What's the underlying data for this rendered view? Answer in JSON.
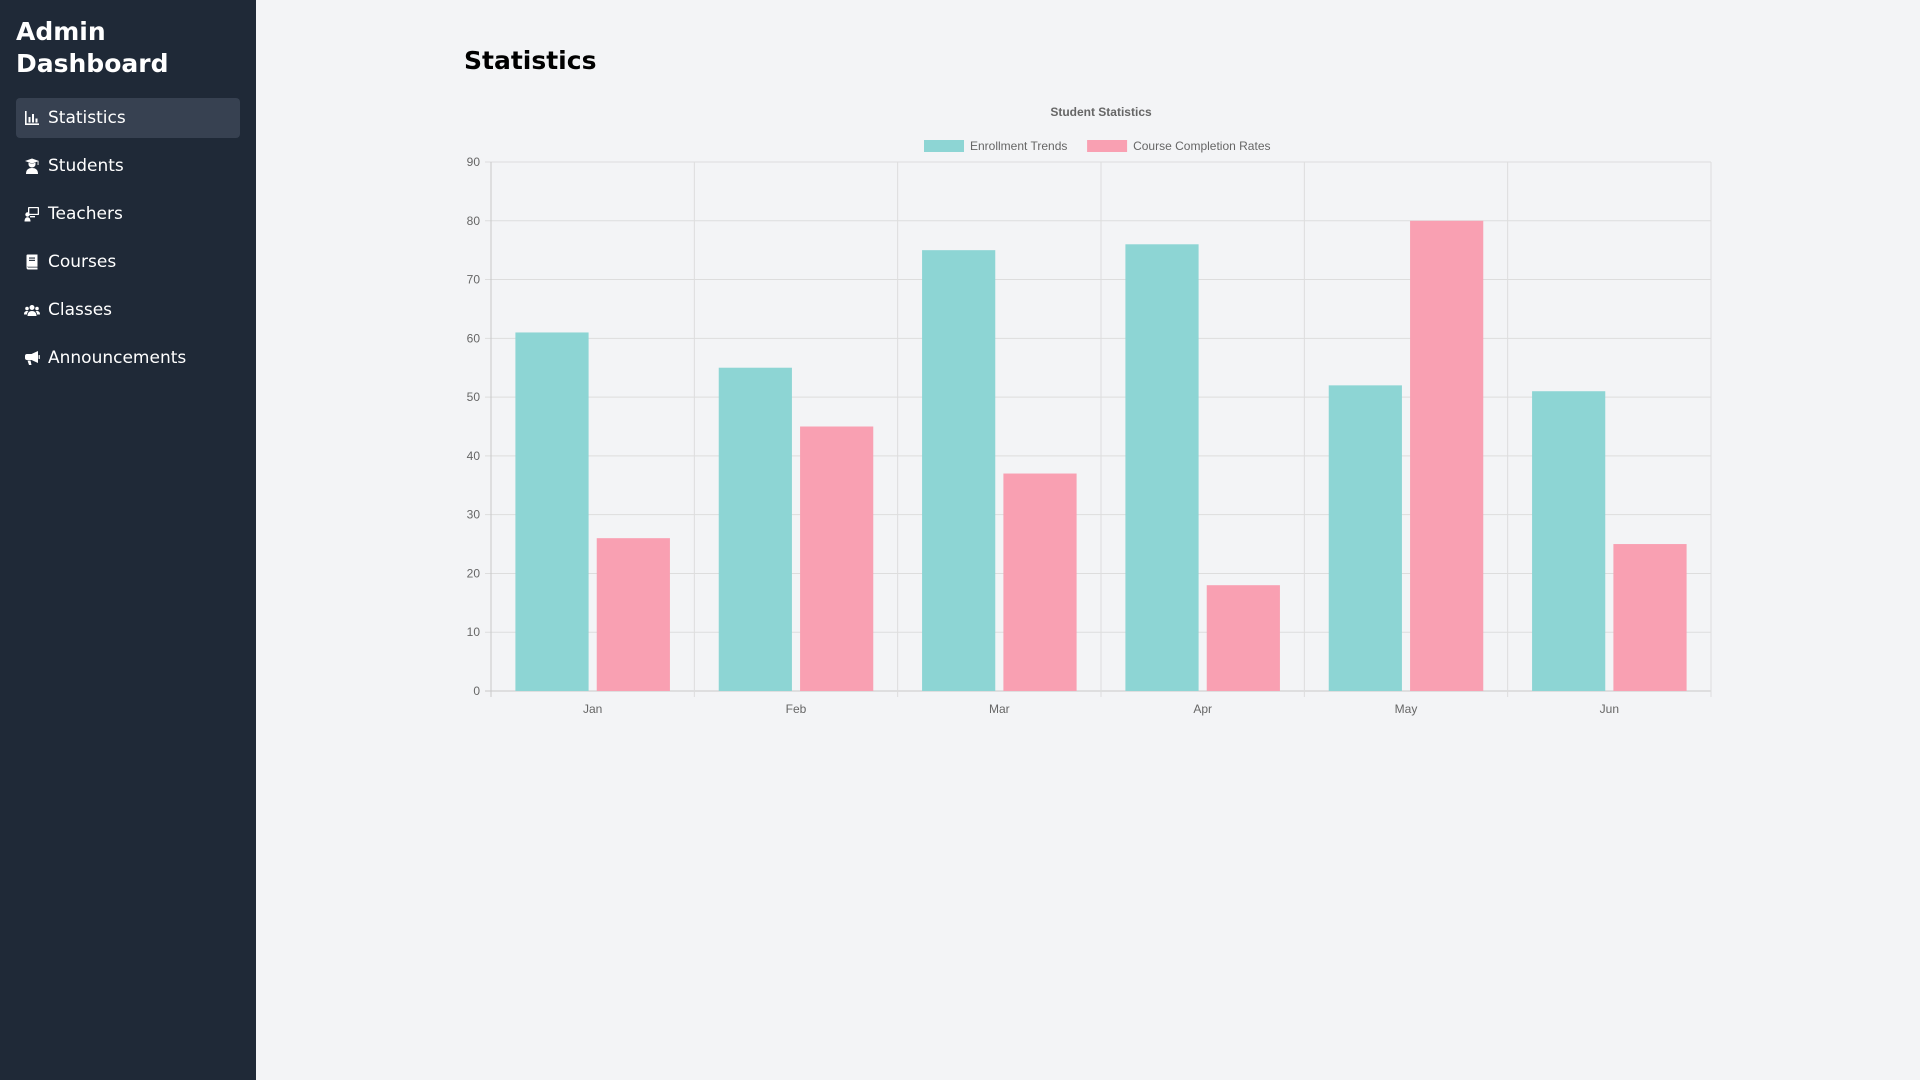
{
  "sidebar": {
    "brand": "Admin Dashboard",
    "items": [
      {
        "label": "Statistics",
        "icon": "chart-bar-icon",
        "active": true
      },
      {
        "label": "Students",
        "icon": "student-icon",
        "active": false
      },
      {
        "label": "Teachers",
        "icon": "teacher-icon",
        "active": false
      },
      {
        "label": "Courses",
        "icon": "book-icon",
        "active": false
      },
      {
        "label": "Classes",
        "icon": "users-icon",
        "active": false
      },
      {
        "label": "Announcements",
        "icon": "bullhorn-icon",
        "active": false
      }
    ]
  },
  "main": {
    "title": "Statistics"
  },
  "colors": {
    "sidebar_bg": "#1f2937",
    "active_item_bg": "#374151",
    "page_bg": "#f3f4f6",
    "enrollment": "#8dd5d4",
    "completion": "#f9a0b2"
  },
  "chart_data": {
    "type": "bar",
    "title": "Student Statistics",
    "categories": [
      "Jan",
      "Feb",
      "Mar",
      "Apr",
      "May",
      "Jun"
    ],
    "series": [
      {
        "name": "Enrollment Trends",
        "values": [
          61,
          55,
          75,
          76,
          52,
          51
        ]
      },
      {
        "name": "Course Completion Rates",
        "values": [
          26,
          45,
          37,
          18,
          80,
          25
        ]
      }
    ],
    "ylim": [
      0,
      90
    ],
    "yticks": [
      0,
      10,
      20,
      30,
      40,
      50,
      60,
      70,
      80,
      90
    ],
    "xlabel": "",
    "ylabel": "",
    "grid": true,
    "legend": "top"
  }
}
